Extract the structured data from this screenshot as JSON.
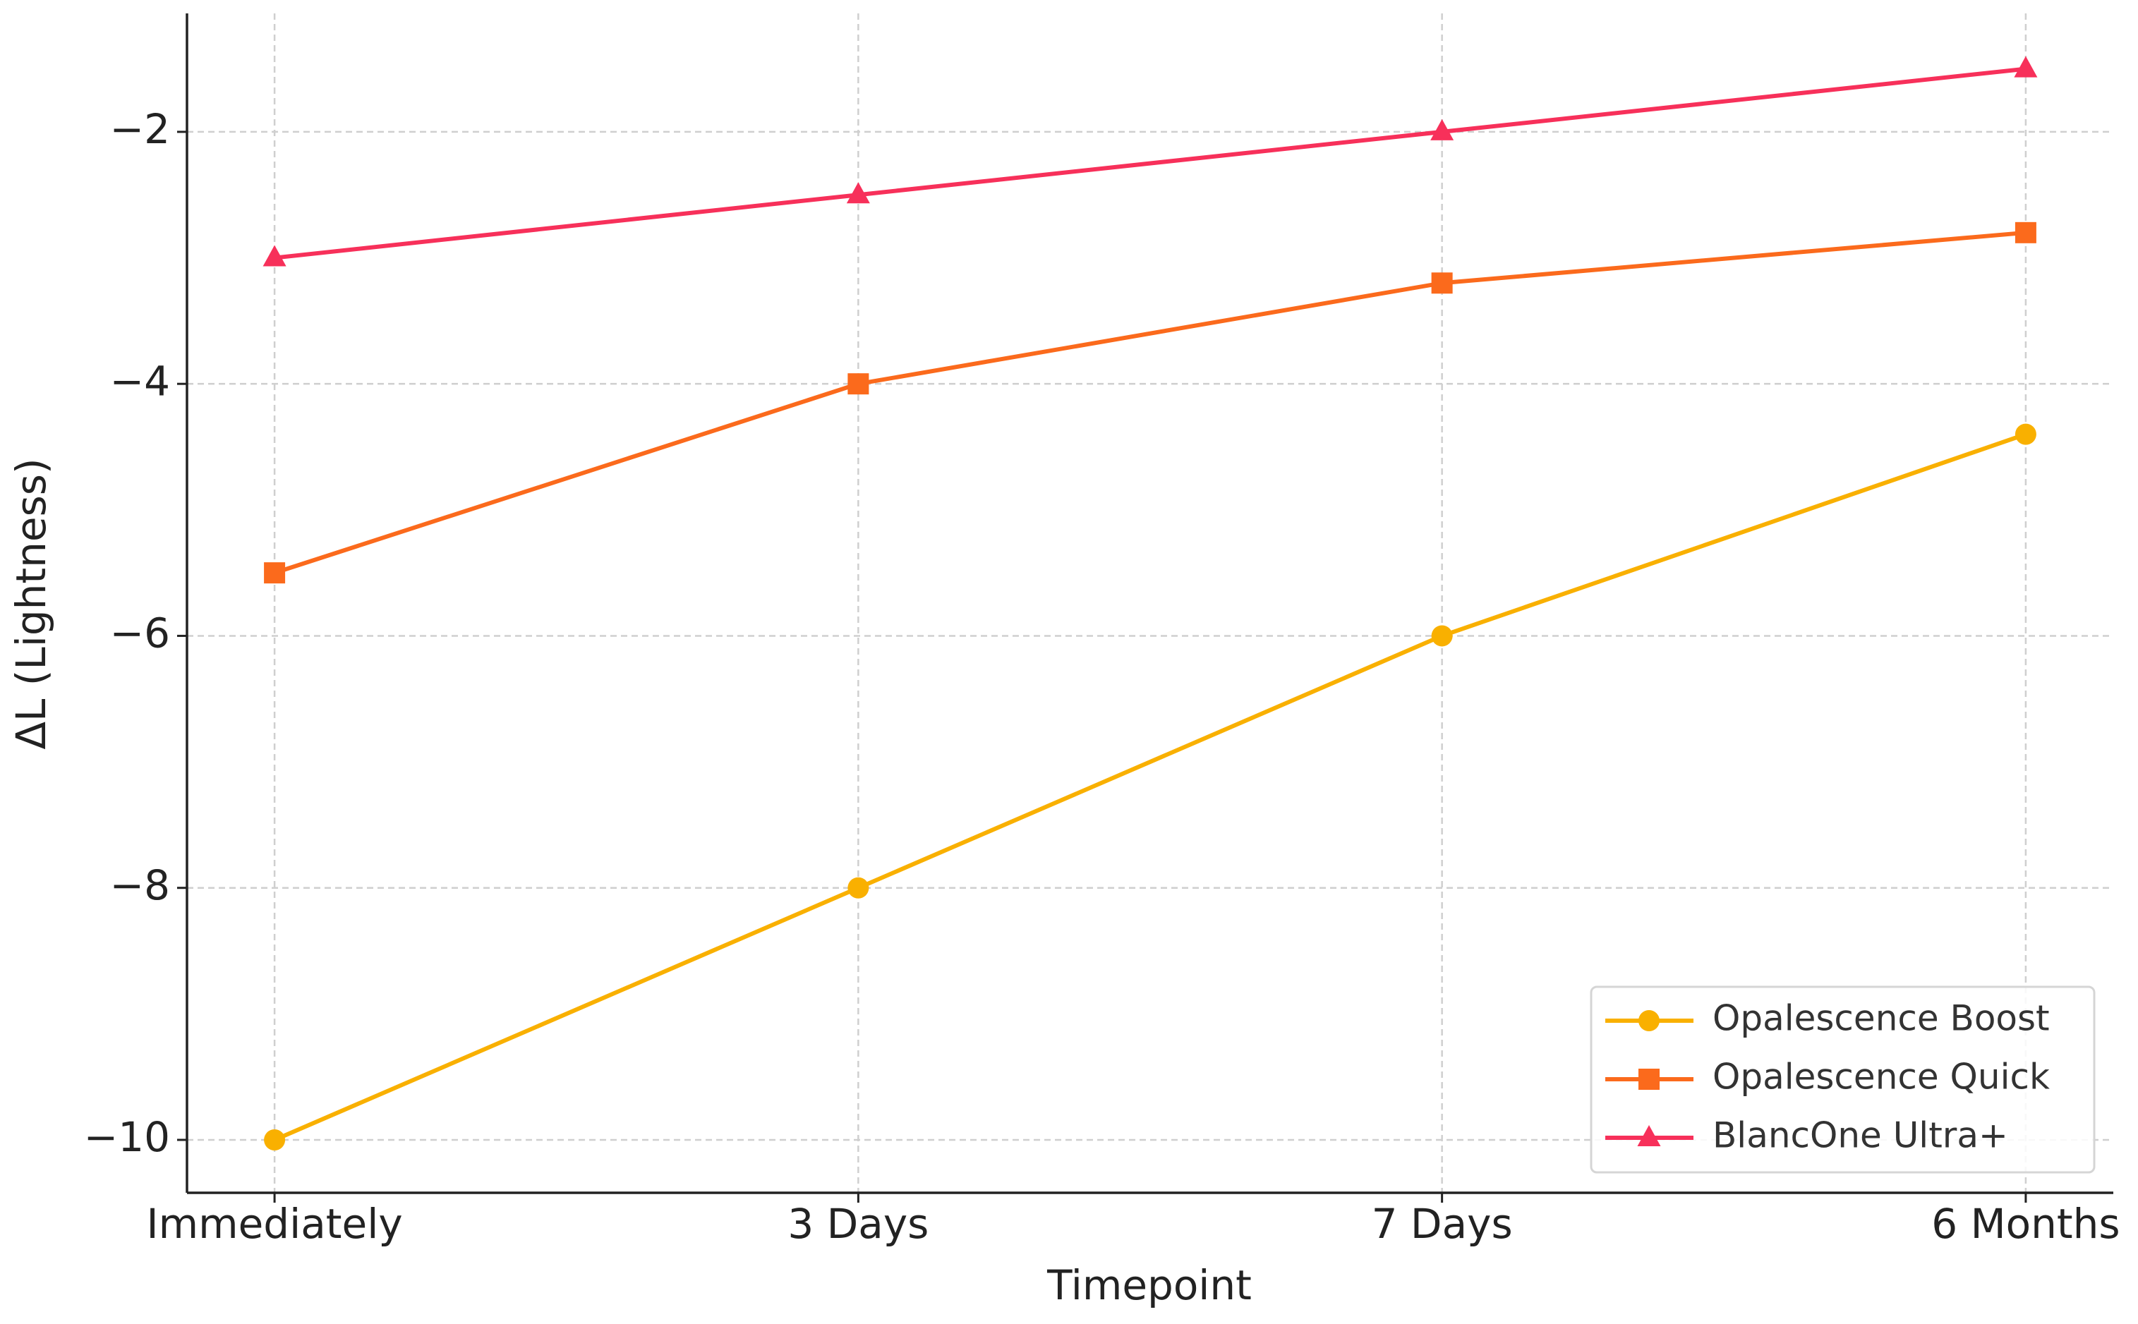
{
  "chart_data": {
    "type": "line",
    "xlabel": "Timepoint",
    "ylabel": "ΔL (Lightness)",
    "categories": [
      "Immediately",
      "3 Days",
      "7 Days",
      "6 Months"
    ],
    "series": [
      {
        "name": "Opalescence Boost",
        "color": "#f9b000",
        "marker": "circle",
        "values": [
          -10,
          -8,
          -6,
          -4.4
        ]
      },
      {
        "name": "Opalescence Quick",
        "color": "#fb6a1c",
        "marker": "square",
        "values": [
          -5.5,
          -4,
          -3.2,
          -2.8
        ]
      },
      {
        "name": "BlancOne Ultra+",
        "color": "#f7305a",
        "marker": "triangle",
        "values": [
          -3,
          -2.5,
          -2,
          -1.5
        ]
      }
    ],
    "ylim": [
      -10.42,
      -1.06
    ],
    "yticks": [
      {
        "value": -10,
        "label": "−10"
      },
      {
        "value": -8,
        "label": "−8"
      },
      {
        "value": -6,
        "label": "−6"
      },
      {
        "value": -4,
        "label": "−4"
      },
      {
        "value": -2,
        "label": "−2"
      }
    ],
    "grid": true,
    "legend": "lower right"
  }
}
